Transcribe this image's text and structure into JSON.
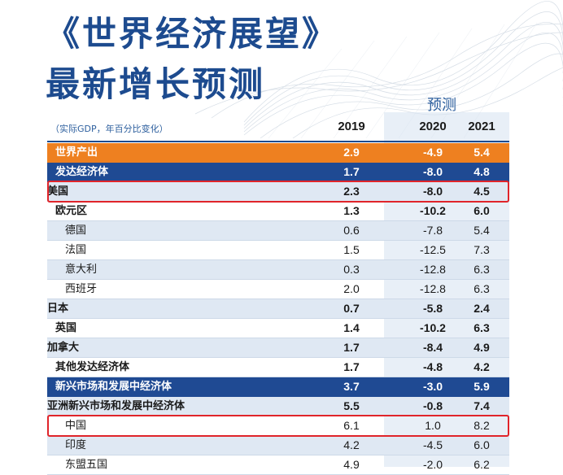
{
  "title": {
    "line1": "《世界经济展望》",
    "line2": "最新增长预测"
  },
  "forecast_label": "预测",
  "unit_note": "（实际GDP，年百分比变化）",
  "columns": [
    "2019",
    "2020",
    "2021"
  ],
  "colors": {
    "title": "#1d4b8f",
    "orange_row": "#ee8020",
    "navy_row": "#1f4a93",
    "shade_row": "#dfe8f3",
    "highlight_box": "#e0242a"
  },
  "rows": [
    {
      "label": "世界产出",
      "style": "orange",
      "values": [
        "2.9",
        "-4.9",
        "5.4"
      ]
    },
    {
      "label": "发达经济体",
      "style": "navy",
      "values": [
        "1.7",
        "-8.0",
        "4.8"
      ]
    },
    {
      "label": "美国",
      "style": "shade bold",
      "values": [
        "2.3",
        "-8.0",
        "4.5"
      ],
      "highlighted": true
    },
    {
      "label": "欧元区",
      "style": "plain bold",
      "values": [
        "1.3",
        "-10.2",
        "6.0"
      ]
    },
    {
      "label": "德国",
      "style": "shade indent",
      "values": [
        "0.6",
        "-7.8",
        "5.4"
      ]
    },
    {
      "label": "法国",
      "style": "indent",
      "values": [
        "1.5",
        "-12.5",
        "7.3"
      ]
    },
    {
      "label": "意大利",
      "style": "shade indent",
      "values": [
        "0.3",
        "-12.8",
        "6.3"
      ]
    },
    {
      "label": "西班牙",
      "style": "indent",
      "values": [
        "2.0",
        "-12.8",
        "6.3"
      ]
    },
    {
      "label": "日本",
      "style": "shade bold",
      "values": [
        "0.7",
        "-5.8",
        "2.4"
      ]
    },
    {
      "label": "英国",
      "style": "plain bold",
      "values": [
        "1.4",
        "-10.2",
        "6.3"
      ]
    },
    {
      "label": "加拿大",
      "style": "shade bold",
      "values": [
        "1.7",
        "-8.4",
        "4.9"
      ]
    },
    {
      "label": "其他发达经济体",
      "style": "plain bold",
      "values": [
        "1.7",
        "-4.8",
        "4.2"
      ]
    },
    {
      "label": "新兴市场和发展中经济体",
      "style": "navy",
      "values": [
        "3.7",
        "-3.0",
        "5.9"
      ]
    },
    {
      "label": "亚洲新兴市场和发展中经济体",
      "style": "shade bold",
      "values": [
        "5.5",
        "-0.8",
        "7.4"
      ]
    },
    {
      "label": "中国",
      "style": "indent",
      "values": [
        "6.1",
        "1.0",
        "8.2"
      ],
      "highlighted": true
    },
    {
      "label": "印度",
      "style": "shade indent",
      "values": [
        "4.2",
        "-4.5",
        "6.0"
      ]
    },
    {
      "label": "东盟五国",
      "style": "indent",
      "values": [
        "4.9",
        "-2.0",
        "6.2"
      ]
    }
  ]
}
